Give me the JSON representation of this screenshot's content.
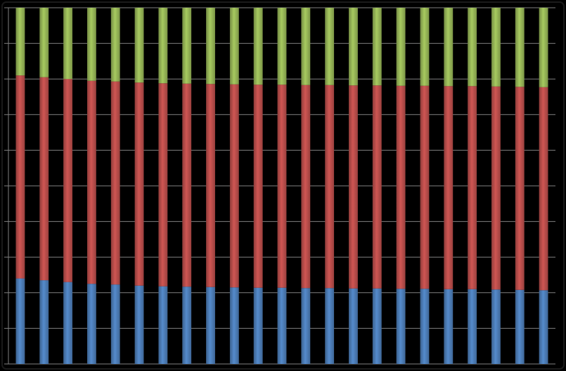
{
  "chart_data": {
    "type": "bar",
    "stacked": true,
    "percent_stacked": true,
    "title": "",
    "xlabel": "",
    "ylabel": "",
    "ylim": [
      0,
      100
    ],
    "grid": true,
    "legend": "none",
    "categories": [
      "",
      "",
      "",
      "",
      "",
      "",
      "",
      "",
      "",
      "",
      "",
      "",
      "",
      "",
      "",
      "",
      "",
      "",
      "",
      "",
      "",
      "",
      ""
    ],
    "series": [
      {
        "color": "#4f81bd",
        "values": [
          24,
          23.5,
          23,
          22.5,
          22.3,
          22,
          21.8,
          21.7,
          21.6,
          21.5,
          21.4,
          21.4,
          21.3,
          21.3,
          21.2,
          21.2,
          21.1,
          21.1,
          21.0,
          21.0,
          20.9,
          20.8,
          20.7
        ]
      },
      {
        "color": "#c0504d",
        "values": [
          57,
          57,
          57,
          57,
          57,
          57,
          57,
          57,
          57,
          57,
          57,
          57,
          57,
          57,
          57,
          57,
          57,
          57,
          57,
          57,
          57,
          57,
          57
        ]
      },
      {
        "color": "#9bbb59",
        "values": [
          19,
          19.5,
          20,
          20.5,
          20.7,
          21,
          21.2,
          21.3,
          21.4,
          21.5,
          21.6,
          21.6,
          21.7,
          21.7,
          21.8,
          21.8,
          21.9,
          21.9,
          22.0,
          22.0,
          22.1,
          22.2,
          22.3
        ]
      }
    ]
  }
}
